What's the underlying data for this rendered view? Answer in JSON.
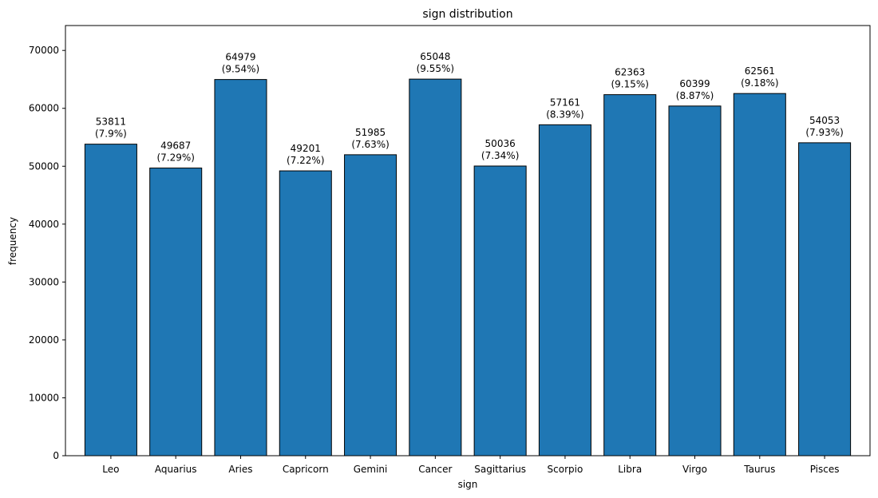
{
  "chart_data": {
    "type": "bar",
    "title": "sign distribution",
    "xlabel": "sign",
    "ylabel": "frequency",
    "ylim": [
      0,
      74300
    ],
    "yticks": [
      0,
      10000,
      20000,
      30000,
      40000,
      50000,
      60000,
      70000
    ],
    "categories": [
      "Leo",
      "Aquarius",
      "Aries",
      "Capricorn",
      "Gemini",
      "Cancer",
      "Sagittarius",
      "Scorpio",
      "Libra",
      "Virgo",
      "Taurus",
      "Pisces"
    ],
    "values": [
      53811,
      49687,
      64979,
      49201,
      51985,
      65048,
      50036,
      57161,
      62363,
      60399,
      62561,
      54053
    ],
    "percent_labels": [
      "(7.9%)",
      "(7.29%)",
      "(9.54%)",
      "(7.22%)",
      "(7.63%)",
      "(9.55%)",
      "(7.34%)",
      "(8.39%)",
      "(9.15%)",
      "(8.87%)",
      "(9.18%)",
      "(7.93%)"
    ],
    "bar_color": "#1f77b4",
    "bar_edge_color": "#000000",
    "grid": false
  }
}
